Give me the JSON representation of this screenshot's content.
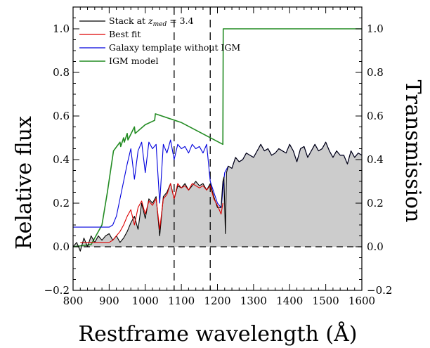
{
  "chart_data": {
    "type": "line",
    "xlabel": "Restframe wavelength (Å)",
    "ylabel": "Relative flux",
    "y2label": "Transmission",
    "xlim": [
      800,
      1600
    ],
    "ylim": [
      -0.2,
      1.1
    ],
    "xticks": [
      800,
      900,
      1000,
      1100,
      1200,
      1300,
      1400,
      1500,
      1600
    ],
    "xtick_labels": [
      "800",
      "900",
      "1000",
      "1100",
      "1200",
      "1300",
      "1400",
      "1500",
      "1600"
    ],
    "yticks": [
      -0.2,
      0.0,
      0.2,
      0.4,
      0.6,
      0.8,
      1.0
    ],
    "ytick_labels": [
      "−0.2",
      "0.0",
      "0.2",
      "0.4",
      "0.6",
      "0.8",
      "1.0"
    ],
    "y2ticks": [
      -0.2,
      0.0,
      0.2,
      0.4,
      0.6,
      0.8,
      1.0
    ],
    "y2tick_labels": [
      "−0.2",
      "0.0",
      "0.2",
      "0.4",
      "0.6",
      "0.8",
      "1.0"
    ],
    "grid": false,
    "legend_position": "top-left",
    "vertical_dashed_lines": [
      1080,
      1180
    ],
    "horizontal_dashed_line": 0.0,
    "series": [
      {
        "name_prefix": "Stack at ",
        "name_math": "z",
        "name_sub": "med",
        "name_suffix": " = 3.4",
        "color": "#000000",
        "fill": "#cccccc",
        "x": [
          800,
          810,
          820,
          830,
          840,
          850,
          860,
          870,
          880,
          890,
          900,
          910,
          920,
          930,
          940,
          950,
          960,
          970,
          980,
          990,
          1000,
          1010,
          1020,
          1030,
          1040,
          1050,
          1060,
          1070,
          1080,
          1090,
          1100,
          1110,
          1120,
          1130,
          1140,
          1150,
          1160,
          1170,
          1180,
          1190,
          1200,
          1210,
          1215,
          1218,
          1222,
          1225,
          1230,
          1240,
          1250,
          1260,
          1270,
          1280,
          1290,
          1300,
          1310,
          1320,
          1330,
          1340,
          1350,
          1360,
          1370,
          1380,
          1390,
          1400,
          1410,
          1420,
          1430,
          1440,
          1450,
          1460,
          1470,
          1480,
          1490,
          1500,
          1510,
          1520,
          1530,
          1540,
          1550,
          1560,
          1570,
          1580,
          1590,
          1600
        ],
        "y": [
          0.0,
          0.02,
          -0.02,
          0.04,
          0.0,
          0.05,
          0.02,
          0.05,
          0.03,
          0.05,
          0.06,
          0.03,
          0.05,
          0.02,
          0.04,
          0.07,
          0.11,
          0.14,
          0.08,
          0.2,
          0.13,
          0.22,
          0.2,
          0.23,
          0.05,
          0.23,
          0.25,
          0.29,
          0.22,
          0.28,
          0.27,
          0.29,
          0.26,
          0.28,
          0.3,
          0.28,
          0.29,
          0.26,
          0.29,
          0.23,
          0.18,
          0.18,
          0.3,
          0.32,
          0.06,
          0.34,
          0.37,
          0.36,
          0.41,
          0.39,
          0.4,
          0.43,
          0.42,
          0.41,
          0.44,
          0.47,
          0.44,
          0.45,
          0.42,
          0.43,
          0.45,
          0.44,
          0.43,
          0.47,
          0.44,
          0.39,
          0.45,
          0.46,
          0.41,
          0.44,
          0.47,
          0.44,
          0.45,
          0.48,
          0.44,
          0.41,
          0.44,
          0.42,
          0.42,
          0.38,
          0.44,
          0.41,
          0.43,
          0.42
        ]
      },
      {
        "name": "Best fit",
        "color": "#dd0000",
        "x": [
          820,
          860,
          900,
          910,
          920,
          930,
          940,
          950,
          960,
          970,
          980,
          990,
          1000,
          1010,
          1020,
          1030,
          1040,
          1050,
          1060,
          1070,
          1080,
          1090,
          1100,
          1110,
          1120,
          1130,
          1140,
          1150,
          1160,
          1170,
          1180,
          1190,
          1200,
          1210,
          1215
        ],
        "y": [
          0.02,
          0.02,
          0.02,
          0.03,
          0.05,
          0.07,
          0.1,
          0.14,
          0.17,
          0.1,
          0.18,
          0.21,
          0.15,
          0.21,
          0.19,
          0.22,
          0.08,
          0.22,
          0.24,
          0.29,
          0.22,
          0.29,
          0.27,
          0.28,
          0.26,
          0.29,
          0.28,
          0.27,
          0.28,
          0.26,
          0.28,
          0.22,
          0.19,
          0.15,
          0.2
        ]
      },
      {
        "name": "Galaxy template without IGM",
        "color": "#0000dd",
        "x": [
          800,
          840,
          880,
          900,
          910,
          920,
          930,
          940,
          950,
          960,
          970,
          980,
          990,
          1000,
          1010,
          1020,
          1030,
          1040,
          1050,
          1060,
          1070,
          1080,
          1090,
          1100,
          1110,
          1120,
          1130,
          1140,
          1150,
          1160,
          1170,
          1180,
          1190,
          1200,
          1210,
          1220,
          1230,
          1240,
          1250,
          1260,
          1270,
          1280,
          1290,
          1300,
          1310,
          1320,
          1330,
          1340,
          1350,
          1360,
          1370,
          1380,
          1390,
          1400,
          1410,
          1420,
          1430,
          1440,
          1450,
          1460,
          1470,
          1480,
          1490,
          1500,
          1510,
          1520,
          1530,
          1540,
          1550,
          1560,
          1570,
          1580,
          1590,
          1600
        ],
        "y": [
          0.09,
          0.09,
          0.09,
          0.09,
          0.1,
          0.14,
          0.22,
          0.3,
          0.38,
          0.45,
          0.31,
          0.44,
          0.48,
          0.34,
          0.48,
          0.45,
          0.47,
          0.2,
          0.47,
          0.43,
          0.49,
          0.4,
          0.47,
          0.45,
          0.46,
          0.43,
          0.47,
          0.45,
          0.46,
          0.43,
          0.47,
          0.3,
          0.25,
          0.2,
          0.18,
          0.34,
          0.37,
          0.36,
          0.41,
          0.39,
          0.4,
          0.43,
          0.42,
          0.41,
          0.44,
          0.47,
          0.44,
          0.45,
          0.42,
          0.43,
          0.45,
          0.44,
          0.43,
          0.47,
          0.44,
          0.39,
          0.45,
          0.46,
          0.41,
          0.44,
          0.47,
          0.44,
          0.45,
          0.48,
          0.44,
          0.41,
          0.44,
          0.42,
          0.42,
          0.38,
          0.44,
          0.41,
          0.43,
          0.42
        ]
      },
      {
        "name": "IGM model",
        "color": "#228b22",
        "x": [
          800,
          850,
          880,
          895,
          912,
          930,
          932,
          940,
          942,
          950,
          952,
          970,
          972,
          1000,
          1026,
          1028,
          1100,
          1215,
          1216,
          1600
        ],
        "y": [
          0.0,
          0.01,
          0.1,
          0.25,
          0.44,
          0.48,
          0.46,
          0.5,
          0.48,
          0.52,
          0.49,
          0.55,
          0.52,
          0.56,
          0.58,
          0.61,
          0.57,
          0.47,
          1.0,
          1.0
        ]
      }
    ]
  }
}
